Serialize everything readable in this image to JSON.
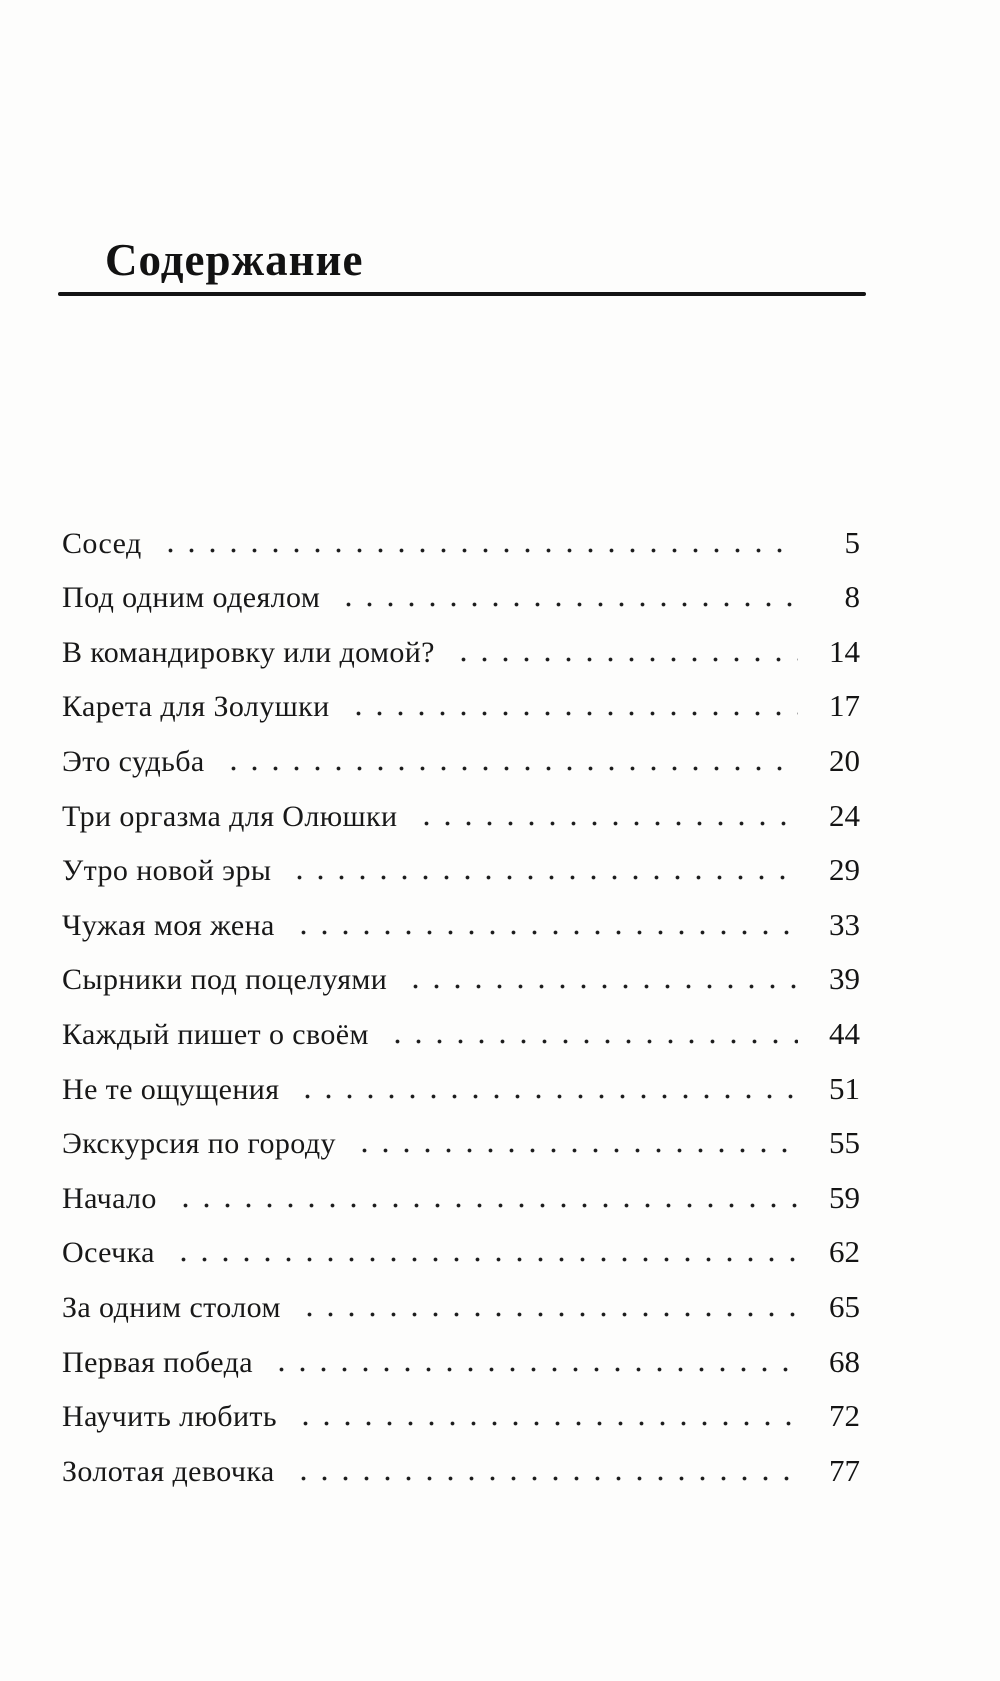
{
  "page": {
    "title": "Содержание",
    "colors": {
      "text": "#161616",
      "background": "#fdfdfc",
      "rule": "#141414"
    },
    "toc": {
      "entries": [
        {
          "title": "Сосед",
          "page": "5"
        },
        {
          "title": "Под одним одеялом",
          "page": "8"
        },
        {
          "title": "В командировку или домой?",
          "page": "14"
        },
        {
          "title": "Карета для Золушки",
          "page": "17"
        },
        {
          "title": "Это судьба",
          "page": "20"
        },
        {
          "title": "Три оргазма для Олюшки",
          "page": "24"
        },
        {
          "title": "Утро новой эры",
          "page": "29"
        },
        {
          "title": "Чужая моя жена",
          "page": "33"
        },
        {
          "title": "Сырники под поцелуями",
          "page": "39"
        },
        {
          "title": "Каждый пишет о своём",
          "page": "44"
        },
        {
          "title": "Не те ощущения",
          "page": "51"
        },
        {
          "title": "Экскурсия по городу",
          "page": "55"
        },
        {
          "title": "Начало",
          "page": "59"
        },
        {
          "title": "Осечка",
          "page": "62"
        },
        {
          "title": "За одним столом",
          "page": "65"
        },
        {
          "title": "Первая победа",
          "page": "68"
        },
        {
          "title": "Научить любить",
          "page": "72"
        },
        {
          "title": "Золотая девочка",
          "page": "77"
        }
      ]
    }
  }
}
